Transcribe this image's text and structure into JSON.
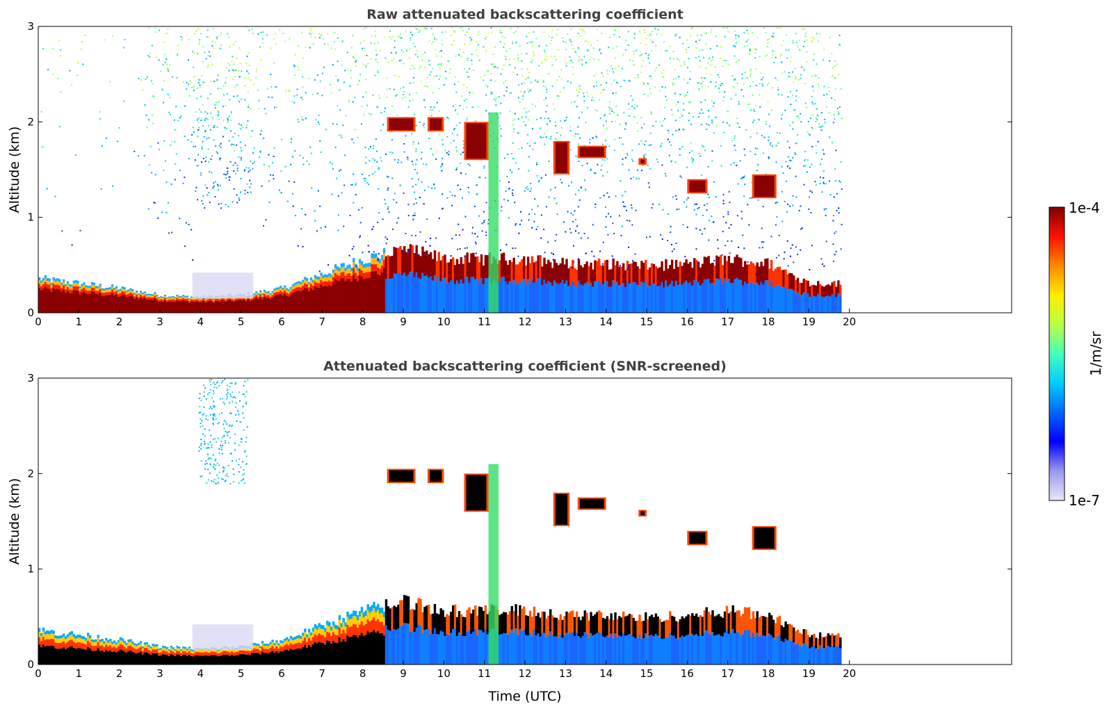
{
  "chart_data": [
    {
      "type": "heatmap",
      "title": "Raw attenuated backscattering coefficient",
      "xlabel": "",
      "ylabel": "Altitude (km)",
      "xlim": [
        0,
        24
      ],
      "ylim": [
        0,
        3
      ],
      "x_ticks": [
        "0",
        "1",
        "2",
        "3",
        "4",
        "5",
        "6",
        "7",
        "8",
        "9",
        "10",
        "11",
        "12",
        "13",
        "14",
        "15",
        "16",
        "17",
        "18",
        "19",
        "20"
      ],
      "y_ticks": [
        "0",
        "1",
        "2",
        "3"
      ],
      "data_time_end": 19.8,
      "screened": false,
      "features": {
        "boundary_layer_top_km": [
          [
            0,
            0.35
          ],
          [
            1,
            0.3
          ],
          [
            2,
            0.25
          ],
          [
            3,
            0.18
          ],
          [
            4,
            0.16
          ],
          [
            5,
            0.18
          ],
          [
            6,
            0.25
          ],
          [
            7,
            0.4
          ],
          [
            8,
            0.55
          ],
          [
            9,
            0.65
          ],
          [
            10,
            0.55
          ],
          [
            11,
            0.55
          ],
          [
            12,
            0.55
          ],
          [
            13,
            0.5
          ],
          [
            14,
            0.5
          ],
          [
            15,
            0.48
          ],
          [
            16,
            0.5
          ],
          [
            17,
            0.55
          ],
          [
            18,
            0.5
          ],
          [
            19,
            0.3
          ],
          [
            19.8,
            0.3
          ]
        ],
        "cloud_patches": [
          {
            "t0": 8.6,
            "t1": 9.3,
            "z0": 1.9,
            "z1": 2.05
          },
          {
            "t0": 9.6,
            "t1": 10.0,
            "z0": 1.9,
            "z1": 2.05
          },
          {
            "t0": 10.5,
            "t1": 11.1,
            "z0": 1.6,
            "z1": 2.0
          },
          {
            "t0": 12.7,
            "t1": 13.1,
            "z0": 1.45,
            "z1": 1.8
          },
          {
            "t0": 13.3,
            "t1": 14.0,
            "z0": 1.62,
            "z1": 1.75
          },
          {
            "t0": 14.8,
            "t1": 15.0,
            "z0": 1.55,
            "z1": 1.62
          },
          {
            "t0": 16.0,
            "t1": 16.5,
            "z0": 1.25,
            "z1": 1.4
          },
          {
            "t0": 17.6,
            "t1": 18.2,
            "z0": 1.2,
            "z1": 1.45
          }
        ]
      }
    },
    {
      "type": "heatmap",
      "title": "Attenuated backscattering coefficient (SNR-screened)",
      "xlabel": "Time (UTC)",
      "ylabel": "Altitude (km)",
      "xlim": [
        0,
        24
      ],
      "ylim": [
        0,
        3
      ],
      "x_ticks": [
        "0",
        "1",
        "2",
        "3",
        "4",
        "5",
        "6",
        "7",
        "8",
        "9",
        "10",
        "11",
        "12",
        "13",
        "14",
        "15",
        "16",
        "17",
        "18",
        "19",
        "20"
      ],
      "y_ticks": [
        "0",
        "1",
        "2",
        "3"
      ],
      "data_time_end": 19.8,
      "screened": true
    }
  ],
  "colorbar": {
    "label": "1/m/sr",
    "max_label": "1e-4",
    "min_label": "1e-7",
    "scale": "log",
    "colormap": [
      "#e8e8f8",
      "#9999ee",
      "#0000ff",
      "#0066ff",
      "#00ccff",
      "#44ffbb",
      "#bbff44",
      "#ffee00",
      "#ff8800",
      "#ff1100",
      "#7f0000"
    ]
  },
  "colors": {
    "title": "#404040",
    "frame": "#000000"
  }
}
